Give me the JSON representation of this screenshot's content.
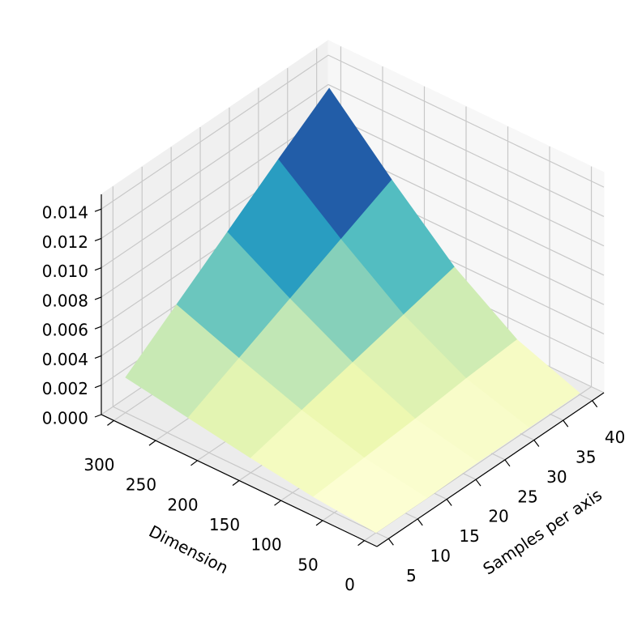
{
  "chart_data": {
    "type": "surface",
    "xlabel": "Samples per axis",
    "ylabel": "Dimension",
    "x": [
      5,
      13.75,
      22.5,
      31.25,
      40
    ],
    "y": [
      0,
      75,
      150,
      225,
      300
    ],
    "z": [
      [
        0.0,
        0.0,
        0.0001,
        0.0001,
        0.0001
      ],
      [
        0.0004,
        0.0007,
        0.001,
        0.0014,
        0.0017
      ],
      [
        0.001,
        0.0019,
        0.0028,
        0.0037,
        0.0046
      ],
      [
        0.0017,
        0.0034,
        0.0051,
        0.0068,
        0.0085
      ],
      [
        0.0024,
        0.005,
        0.0076,
        0.0102,
        0.0127
      ]
    ],
    "colormap": [
      "#ffffd9",
      "#edf8b1",
      "#c7e9b4",
      "#7fcdbb",
      "#41b6c4",
      "#1d91c0",
      "#225ea8",
      "#253494",
      "#081d58"
    ],
    "xlim": [
      3,
      42
    ],
    "ylim": [
      -15,
      315
    ],
    "zlim": [
      0,
      0.015
    ],
    "xticks": [
      5,
      10,
      15,
      20,
      25,
      30,
      35,
      40
    ],
    "yticks": [
      0,
      50,
      100,
      150,
      200,
      250,
      300
    ],
    "zticks": [
      {
        "value": 0,
        "label": "0.000"
      },
      0.002,
      0.004,
      0.006,
      0.008,
      {
        "value": 0.01,
        "label": "0.010"
      },
      0.012,
      0.014
    ],
    "grid": true
  }
}
